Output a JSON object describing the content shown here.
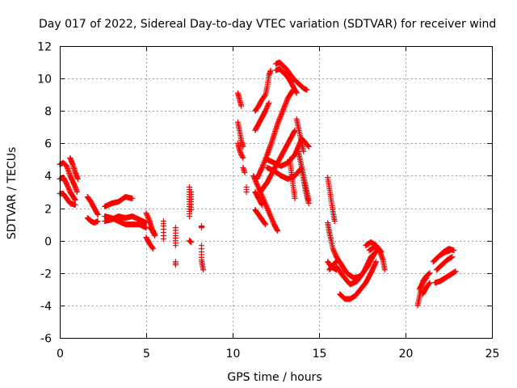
{
  "chart_data": {
    "type": "scatter",
    "title": "Day 017 of 2022, Sidereal Day-to-day VTEC variation (SDTVAR) for receiver wind",
    "xlabel": "GPS time / hours",
    "ylabel": "SDTVAR / TECUs",
    "xlim": [
      0,
      25
    ],
    "ylim": [
      -6,
      12
    ],
    "xticks": [
      0,
      5,
      10,
      15,
      20,
      25
    ],
    "yticks": [
      -6,
      -4,
      -2,
      0,
      2,
      4,
      6,
      8,
      10,
      12
    ],
    "grid": true,
    "legend": "none",
    "marker": "plus",
    "marker_color": "#ff0000",
    "series": [
      {
        "name": "SDTVAR",
        "segments": [
          [
            [
              0.0,
              4.7
            ],
            [
              0.2,
              4.8
            ],
            [
              0.4,
              4.6
            ],
            [
              0.6,
              4.0
            ],
            [
              0.9,
              3.3
            ],
            [
              1.0,
              3.0
            ]
          ],
          [
            [
              0.0,
              3.8
            ],
            [
              0.2,
              3.9
            ],
            [
              0.4,
              3.5
            ],
            [
              0.6,
              3.0
            ],
            [
              0.9,
              2.5
            ]
          ],
          [
            [
              0.0,
              2.9
            ],
            [
              0.2,
              2.9
            ],
            [
              0.4,
              2.6
            ],
            [
              0.6,
              2.3
            ],
            [
              0.9,
              2.2
            ]
          ],
          [
            [
              0.6,
              5.1
            ],
            [
              0.75,
              4.7
            ],
            [
              0.9,
              4.2
            ],
            [
              1.05,
              3.8
            ]
          ],
          [
            [
              1.6,
              2.7
            ],
            [
              1.8,
              2.4
            ],
            [
              2.0,
              2.0
            ],
            [
              2.2,
              1.6
            ]
          ],
          [
            [
              1.6,
              1.4
            ],
            [
              1.8,
              1.2
            ],
            [
              2.0,
              1.1
            ],
            [
              2.2,
              1.2
            ]
          ],
          [
            [
              2.6,
              2.1
            ],
            [
              3.0,
              2.3
            ],
            [
              3.4,
              2.4
            ],
            [
              3.8,
              2.7
            ],
            [
              4.2,
              2.6
            ]
          ],
          [
            [
              2.6,
              1.2
            ],
            [
              3.0,
              1.3
            ],
            [
              3.4,
              1.5
            ],
            [
              3.8,
              1.4
            ],
            [
              4.2,
              1.5
            ],
            [
              4.6,
              1.3
            ],
            [
              5.0,
              1.1
            ]
          ],
          [
            [
              2.6,
              1.5
            ],
            [
              3.0,
              1.4
            ],
            [
              3.4,
              1.2
            ],
            [
              3.8,
              1.0
            ],
            [
              4.2,
              1.0
            ],
            [
              4.6,
              1.0
            ],
            [
              5.0,
              0.8
            ]
          ],
          [
            [
              5.0,
              1.7
            ],
            [
              5.2,
              1.2
            ],
            [
              5.4,
              0.5
            ],
            [
              5.5,
              0.3
            ]
          ],
          [
            [
              5.0,
              0.2
            ],
            [
              5.2,
              -0.2
            ],
            [
              5.4,
              -0.5
            ]
          ],
          [
            [
              5.2,
              0.8
            ],
            [
              5.4,
              0.6
            ],
            [
              5.5,
              0.4
            ]
          ],
          [
            [
              6.0,
              1.2
            ],
            [
              6.0,
              0.9
            ],
            [
              6.0,
              0.5
            ],
            [
              6.0,
              0.1
            ]
          ],
          [
            [
              6.7,
              0.8
            ],
            [
              6.7,
              0.3
            ],
            [
              6.7,
              -0.3
            ]
          ],
          [
            [
              6.7,
              -1.3
            ],
            [
              6.7,
              -1.5
            ]
          ],
          [
            [
              7.5,
              3.3
            ],
            [
              7.5,
              2.7
            ],
            [
              7.5,
              2.1
            ],
            [
              7.5,
              1.5
            ]
          ],
          [
            [
              7.6,
              3.0
            ],
            [
              7.6,
              2.4
            ],
            [
              7.6,
              1.9
            ]
          ],
          [
            [
              7.5,
              0.0
            ],
            [
              7.6,
              -0.1
            ]
          ],
          [
            [
              8.2,
              0.9
            ],
            [
              8.2,
              0.8
            ]
          ],
          [
            [
              8.2,
              -0.3
            ],
            [
              8.2,
              -0.7
            ],
            [
              8.2,
              -1.2
            ],
            [
              8.3,
              -1.8
            ]
          ],
          [
            [
              10.3,
              9.1
            ],
            [
              10.4,
              8.7
            ],
            [
              10.5,
              8.3
            ]
          ],
          [
            [
              10.3,
              7.3
            ],
            [
              10.4,
              6.8
            ],
            [
              10.5,
              6.2
            ],
            [
              10.6,
              5.8
            ]
          ],
          [
            [
              10.3,
              6.0
            ],
            [
              10.4,
              5.6
            ],
            [
              10.5,
              5.3
            ],
            [
              10.6,
              5.1
            ]
          ],
          [
            [
              10.6,
              4.5
            ],
            [
              10.7,
              4.2
            ]
          ],
          [
            [
              10.8,
              3.3
            ],
            [
              10.8,
              3.0
            ]
          ],
          [
            [
              11.2,
              4.0
            ],
            [
              11.4,
              3.5
            ],
            [
              11.6,
              3.0
            ],
            [
              11.8,
              2.5
            ],
            [
              12.0,
              2.0
            ],
            [
              12.2,
              1.5
            ],
            [
              12.4,
              1.0
            ],
            [
              12.6,
              0.6
            ]
          ],
          [
            [
              11.3,
              3.0
            ],
            [
              11.5,
              2.6
            ],
            [
              11.7,
              2.2
            ]
          ],
          [
            [
              11.3,
              1.9
            ],
            [
              11.5,
              1.6
            ],
            [
              11.7,
              1.3
            ],
            [
              11.9,
              1.0
            ]
          ],
          [
            [
              11.3,
              8.0
            ],
            [
              11.5,
              8.3
            ],
            [
              11.7,
              8.7
            ],
            [
              11.9,
              9.0
            ],
            [
              12.0,
              9.5
            ],
            [
              12.1,
              10.2
            ],
            [
              12.2,
              10.5
            ]
          ],
          [
            [
              11.3,
              6.8
            ],
            [
              11.5,
              7.2
            ],
            [
              11.7,
              7.6
            ],
            [
              11.9,
              8.0
            ],
            [
              12.1,
              8.5
            ]
          ],
          [
            [
              11.4,
              3.8
            ],
            [
              11.7,
              4.5
            ],
            [
              12.0,
              5.3
            ],
            [
              12.3,
              6.2
            ],
            [
              12.6,
              7.2
            ],
            [
              12.9,
              8.0
            ],
            [
              13.2,
              8.8
            ],
            [
              13.5,
              9.3
            ]
          ],
          [
            [
              11.6,
              3.0
            ],
            [
              12.0,
              3.6
            ],
            [
              12.4,
              4.4
            ],
            [
              12.8,
              5.2
            ],
            [
              13.2,
              6.0
            ],
            [
              13.6,
              6.8
            ]
          ],
          [
            [
              12.0,
              5.0
            ],
            [
              12.4,
              4.8
            ],
            [
              12.8,
              4.6
            ],
            [
              13.2,
              4.8
            ],
            [
              13.6,
              5.3
            ],
            [
              14.0,
              6.3
            ],
            [
              14.4,
              5.8
            ]
          ],
          [
            [
              12.0,
              4.5
            ],
            [
              12.4,
              4.3
            ],
            [
              12.8,
              4.0
            ],
            [
              13.2,
              3.8
            ],
            [
              13.6,
              4.0
            ],
            [
              14.0,
              4.5
            ]
          ],
          [
            [
              12.5,
              10.9
            ],
            [
              12.7,
              11.0
            ],
            [
              12.9,
              10.8
            ],
            [
              13.1,
              10.6
            ],
            [
              13.3,
              10.3
            ],
            [
              13.5,
              10.0
            ],
            [
              13.7,
              9.8
            ],
            [
              13.9,
              9.6
            ],
            [
              14.1,
              9.4
            ],
            [
              14.3,
              9.3
            ]
          ],
          [
            [
              12.5,
              10.5
            ],
            [
              12.7,
              10.6
            ],
            [
              12.9,
              10.4
            ],
            [
              13.1,
              10.2
            ],
            [
              13.3,
              9.9
            ],
            [
              13.5,
              9.5
            ],
            [
              13.7,
              9.1
            ]
          ],
          [
            [
              13.7,
              7.5
            ],
            [
              13.8,
              7.0
            ],
            [
              13.9,
              6.5
            ],
            [
              14.0,
              6.0
            ],
            [
              14.1,
              5.5
            ]
          ],
          [
            [
              13.8,
              5.5
            ],
            [
              13.9,
              5.0
            ],
            [
              14.0,
              4.5
            ],
            [
              14.1,
              4.0
            ],
            [
              14.2,
              3.5
            ],
            [
              14.3,
              3.0
            ],
            [
              14.4,
              2.5
            ]
          ],
          [
            [
              14.0,
              4.4
            ],
            [
              14.1,
              3.8
            ],
            [
              14.2,
              3.2
            ],
            [
              14.3,
              2.7
            ],
            [
              14.4,
              2.3
            ]
          ],
          [
            [
              13.3,
              5.0
            ],
            [
              13.4,
              4.2
            ],
            [
              13.5,
              3.4
            ],
            [
              13.6,
              2.6
            ]
          ],
          [
            [
              15.5,
              3.9
            ],
            [
              15.6,
              3.2
            ],
            [
              15.7,
              2.5
            ],
            [
              15.8,
              1.8
            ],
            [
              15.9,
              1.2
            ]
          ],
          [
            [
              15.5,
              1.1
            ],
            [
              15.6,
              0.5
            ],
            [
              15.7,
              0.0
            ],
            [
              15.8,
              -0.5
            ],
            [
              16.0,
              -1.0
            ]
          ],
          [
            [
              15.5,
              -1.3
            ],
            [
              15.7,
              -1.6
            ],
            [
              16.0,
              -1.8
            ]
          ],
          [
            [
              15.6,
              -1.8
            ],
            [
              15.8,
              -1.5
            ],
            [
              16.0,
              -1.3
            ]
          ],
          [
            [
              16.0,
              -1.0
            ],
            [
              16.3,
              -1.5
            ],
            [
              16.6,
              -2.0
            ],
            [
              17.0,
              -2.3
            ],
            [
              17.4,
              -2.2
            ],
            [
              17.8,
              -1.6
            ],
            [
              18.2,
              -0.8
            ]
          ],
          [
            [
              16.0,
              -1.6
            ],
            [
              16.4,
              -2.2
            ],
            [
              16.8,
              -2.7
            ],
            [
              17.2,
              -2.5
            ],
            [
              17.6,
              -1.9
            ],
            [
              18.0,
              -1.0
            ],
            [
              18.4,
              -0.6
            ]
          ],
          [
            [
              16.2,
              -3.3
            ],
            [
              16.5,
              -3.6
            ],
            [
              16.8,
              -3.6
            ],
            [
              17.1,
              -3.4
            ],
            [
              17.4,
              -3.0
            ],
            [
              17.7,
              -2.6
            ],
            [
              18.0,
              -2.0
            ],
            [
              18.3,
              -1.3
            ]
          ],
          [
            [
              17.7,
              -0.3
            ],
            [
              18.0,
              -0.1
            ],
            [
              18.3,
              -0.3
            ],
            [
              18.6,
              -0.7
            ]
          ],
          [
            [
              17.9,
              -0.6
            ],
            [
              18.2,
              -0.4
            ],
            [
              18.5,
              -0.6
            ],
            [
              18.7,
              -1.2
            ],
            [
              18.8,
              -1.8
            ]
          ],
          [
            [
              20.7,
              -4.0
            ],
            [
              20.8,
              -3.5
            ],
            [
              20.9,
              -3.0
            ],
            [
              21.0,
              -2.5
            ],
            [
              21.2,
              -2.2
            ],
            [
              21.4,
              -2.0
            ]
          ],
          [
            [
              20.8,
              -3.0
            ],
            [
              21.0,
              -2.6
            ],
            [
              21.2,
              -2.3
            ]
          ],
          [
            [
              21.0,
              -3.3
            ],
            [
              21.2,
              -2.9
            ],
            [
              21.4,
              -2.6
            ]
          ],
          [
            [
              21.6,
              -1.3
            ],
            [
              21.9,
              -1.0
            ],
            [
              22.2,
              -0.7
            ],
            [
              22.5,
              -0.5
            ],
            [
              22.8,
              -0.6
            ]
          ],
          [
            [
              21.7,
              -2.6
            ],
            [
              22.0,
              -2.5
            ],
            [
              22.3,
              -2.3
            ],
            [
              22.6,
              -2.1
            ],
            [
              22.9,
              -1.9
            ]
          ],
          [
            [
              21.8,
              -1.8
            ],
            [
              22.1,
              -1.5
            ],
            [
              22.4,
              -1.2
            ],
            [
              22.7,
              -1.0
            ]
          ],
          [
            [
              22.0,
              -0.9
            ],
            [
              22.3,
              -0.7
            ],
            [
              22.6,
              -0.6
            ]
          ]
        ]
      }
    ]
  }
}
